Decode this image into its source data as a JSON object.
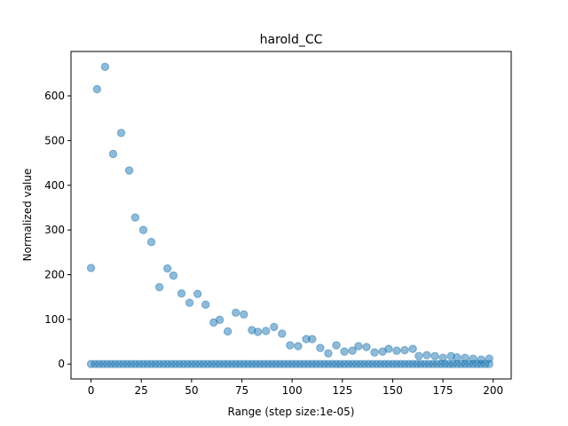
{
  "chart_data": {
    "type": "scatter",
    "title": "harold_CC",
    "xlabel": "Range (step size:1e-05)",
    "ylabel": "Normalized value",
    "xlim": [
      -9.95,
      208.95
    ],
    "ylim": [
      -33.3,
      699.3
    ],
    "xticks": [
      0,
      25,
      50,
      75,
      100,
      125,
      150,
      175,
      200
    ],
    "yticks": [
      0,
      100,
      200,
      300,
      400,
      500,
      600
    ],
    "grid": false,
    "marker_color": "#1f77b4",
    "marker_alpha": 0.5,
    "series": [
      {
        "points": [
          [
            0,
            215
          ],
          [
            3,
            615
          ],
          [
            7,
            665
          ],
          [
            11,
            470
          ],
          [
            15,
            517
          ],
          [
            19,
            433
          ],
          [
            22,
            328
          ],
          [
            26,
            300
          ],
          [
            30,
            273
          ],
          [
            34,
            172
          ],
          [
            38,
            214
          ],
          [
            41,
            198
          ],
          [
            45,
            158
          ],
          [
            49,
            137
          ],
          [
            53,
            157
          ],
          [
            57,
            133
          ],
          [
            61,
            93
          ],
          [
            64,
            99
          ],
          [
            68,
            73
          ],
          [
            72,
            115
          ],
          [
            76,
            111
          ],
          [
            80,
            76
          ],
          [
            83,
            72
          ],
          [
            87,
            74
          ],
          [
            91,
            83
          ],
          [
            95,
            68
          ],
          [
            99,
            42
          ],
          [
            103,
            40
          ],
          [
            107,
            56
          ],
          [
            110,
            56
          ],
          [
            114,
            36
          ],
          [
            118,
            24
          ],
          [
            122,
            42
          ],
          [
            126,
            28
          ],
          [
            130,
            30
          ],
          [
            133,
            40
          ],
          [
            137,
            38
          ],
          [
            141,
            26
          ],
          [
            145,
            28
          ],
          [
            148,
            34
          ],
          [
            152,
            30
          ],
          [
            156,
            31
          ],
          [
            160,
            34
          ],
          [
            163,
            18
          ],
          [
            167,
            20
          ],
          [
            171,
            18
          ],
          [
            175,
            14
          ],
          [
            179,
            18
          ],
          [
            182,
            15
          ],
          [
            186,
            14
          ],
          [
            190,
            12
          ],
          [
            194,
            10
          ],
          [
            198,
            12
          ],
          [
            0,
            0
          ],
          [
            2,
            0
          ],
          [
            4,
            0
          ],
          [
            6,
            0
          ],
          [
            8,
            0
          ],
          [
            10,
            0
          ],
          [
            12,
            0
          ],
          [
            14,
            0
          ],
          [
            16,
            0
          ],
          [
            18,
            0
          ],
          [
            20,
            0
          ],
          [
            22,
            0
          ],
          [
            24,
            0
          ],
          [
            26,
            0
          ],
          [
            28,
            0
          ],
          [
            30,
            0
          ],
          [
            32,
            0
          ],
          [
            34,
            0
          ],
          [
            36,
            0
          ],
          [
            38,
            0
          ],
          [
            40,
            0
          ],
          [
            42,
            0
          ],
          [
            44,
            0
          ],
          [
            46,
            0
          ],
          [
            48,
            0
          ],
          [
            50,
            0
          ],
          [
            52,
            0
          ],
          [
            54,
            0
          ],
          [
            56,
            0
          ],
          [
            58,
            0
          ],
          [
            60,
            0
          ],
          [
            62,
            0
          ],
          [
            64,
            0
          ],
          [
            66,
            0
          ],
          [
            68,
            0
          ],
          [
            70,
            0
          ],
          [
            72,
            0
          ],
          [
            74,
            0
          ],
          [
            76,
            0
          ],
          [
            78,
            0
          ],
          [
            80,
            0
          ],
          [
            82,
            0
          ],
          [
            84,
            0
          ],
          [
            86,
            0
          ],
          [
            88,
            0
          ],
          [
            90,
            0
          ],
          [
            92,
            0
          ],
          [
            94,
            0
          ],
          [
            96,
            0
          ],
          [
            98,
            0
          ],
          [
            100,
            0
          ],
          [
            102,
            0
          ],
          [
            104,
            0
          ],
          [
            106,
            0
          ],
          [
            108,
            0
          ],
          [
            110,
            0
          ],
          [
            112,
            0
          ],
          [
            114,
            0
          ],
          [
            116,
            0
          ],
          [
            118,
            0
          ],
          [
            120,
            0
          ],
          [
            122,
            0
          ],
          [
            124,
            0
          ],
          [
            126,
            0
          ],
          [
            128,
            0
          ],
          [
            130,
            0
          ],
          [
            132,
            0
          ],
          [
            134,
            0
          ],
          [
            136,
            0
          ],
          [
            138,
            0
          ],
          [
            140,
            0
          ],
          [
            142,
            0
          ],
          [
            144,
            0
          ],
          [
            146,
            0
          ],
          [
            148,
            0
          ],
          [
            150,
            0
          ],
          [
            152,
            0
          ],
          [
            154,
            0
          ],
          [
            156,
            0
          ],
          [
            158,
            0
          ],
          [
            160,
            0
          ],
          [
            162,
            0
          ],
          [
            164,
            0
          ],
          [
            166,
            0
          ],
          [
            168,
            0
          ],
          [
            170,
            0
          ],
          [
            172,
            0
          ],
          [
            174,
            0
          ],
          [
            176,
            0
          ],
          [
            178,
            0
          ],
          [
            180,
            0
          ],
          [
            182,
            0
          ],
          [
            184,
            0
          ],
          [
            186,
            0
          ],
          [
            188,
            0
          ],
          [
            190,
            0
          ],
          [
            192,
            0
          ],
          [
            194,
            0
          ],
          [
            196,
            0
          ],
          [
            198,
            0
          ]
        ]
      }
    ]
  }
}
